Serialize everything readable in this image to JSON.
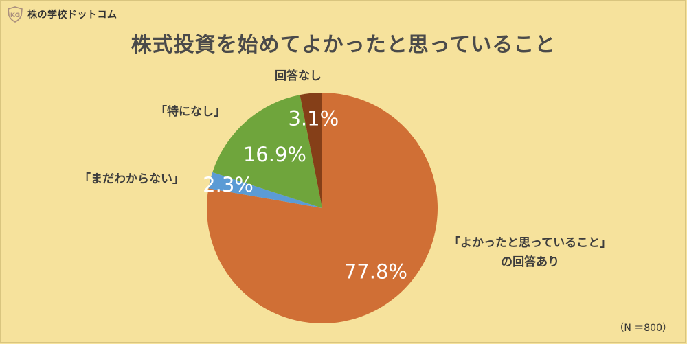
{
  "brand": {
    "name": "株の学校ドットコム",
    "logo_text": "KG"
  },
  "chart_data": {
    "type": "pie",
    "title": "株式投資を始めてよかったと思っていること",
    "slices": [
      {
        "label": "「よかったと思っていること」の回答あり",
        "label_lines": [
          "「よかったと思っていること」",
          "の回答あり"
        ],
        "value": 77.8,
        "display": "77.8%",
        "color": "#d06f35"
      },
      {
        "label": "「まだわからない」",
        "label_lines": [
          "「まだわからない」"
        ],
        "value": 2.3,
        "display": "2.3%",
        "color": "#5b9bd5"
      },
      {
        "label": "「特になし」",
        "label_lines": [
          "「特になし」"
        ],
        "value": 16.9,
        "display": "16.9%",
        "color": "#6fa53c"
      },
      {
        "label": "回答なし",
        "label_lines": [
          "回答なし"
        ],
        "value": 3.1,
        "display": "3.1%",
        "color": "#853f18"
      }
    ],
    "start": "12 o'clock",
    "direction": "clockwise",
    "note": "（N ＝800）"
  }
}
